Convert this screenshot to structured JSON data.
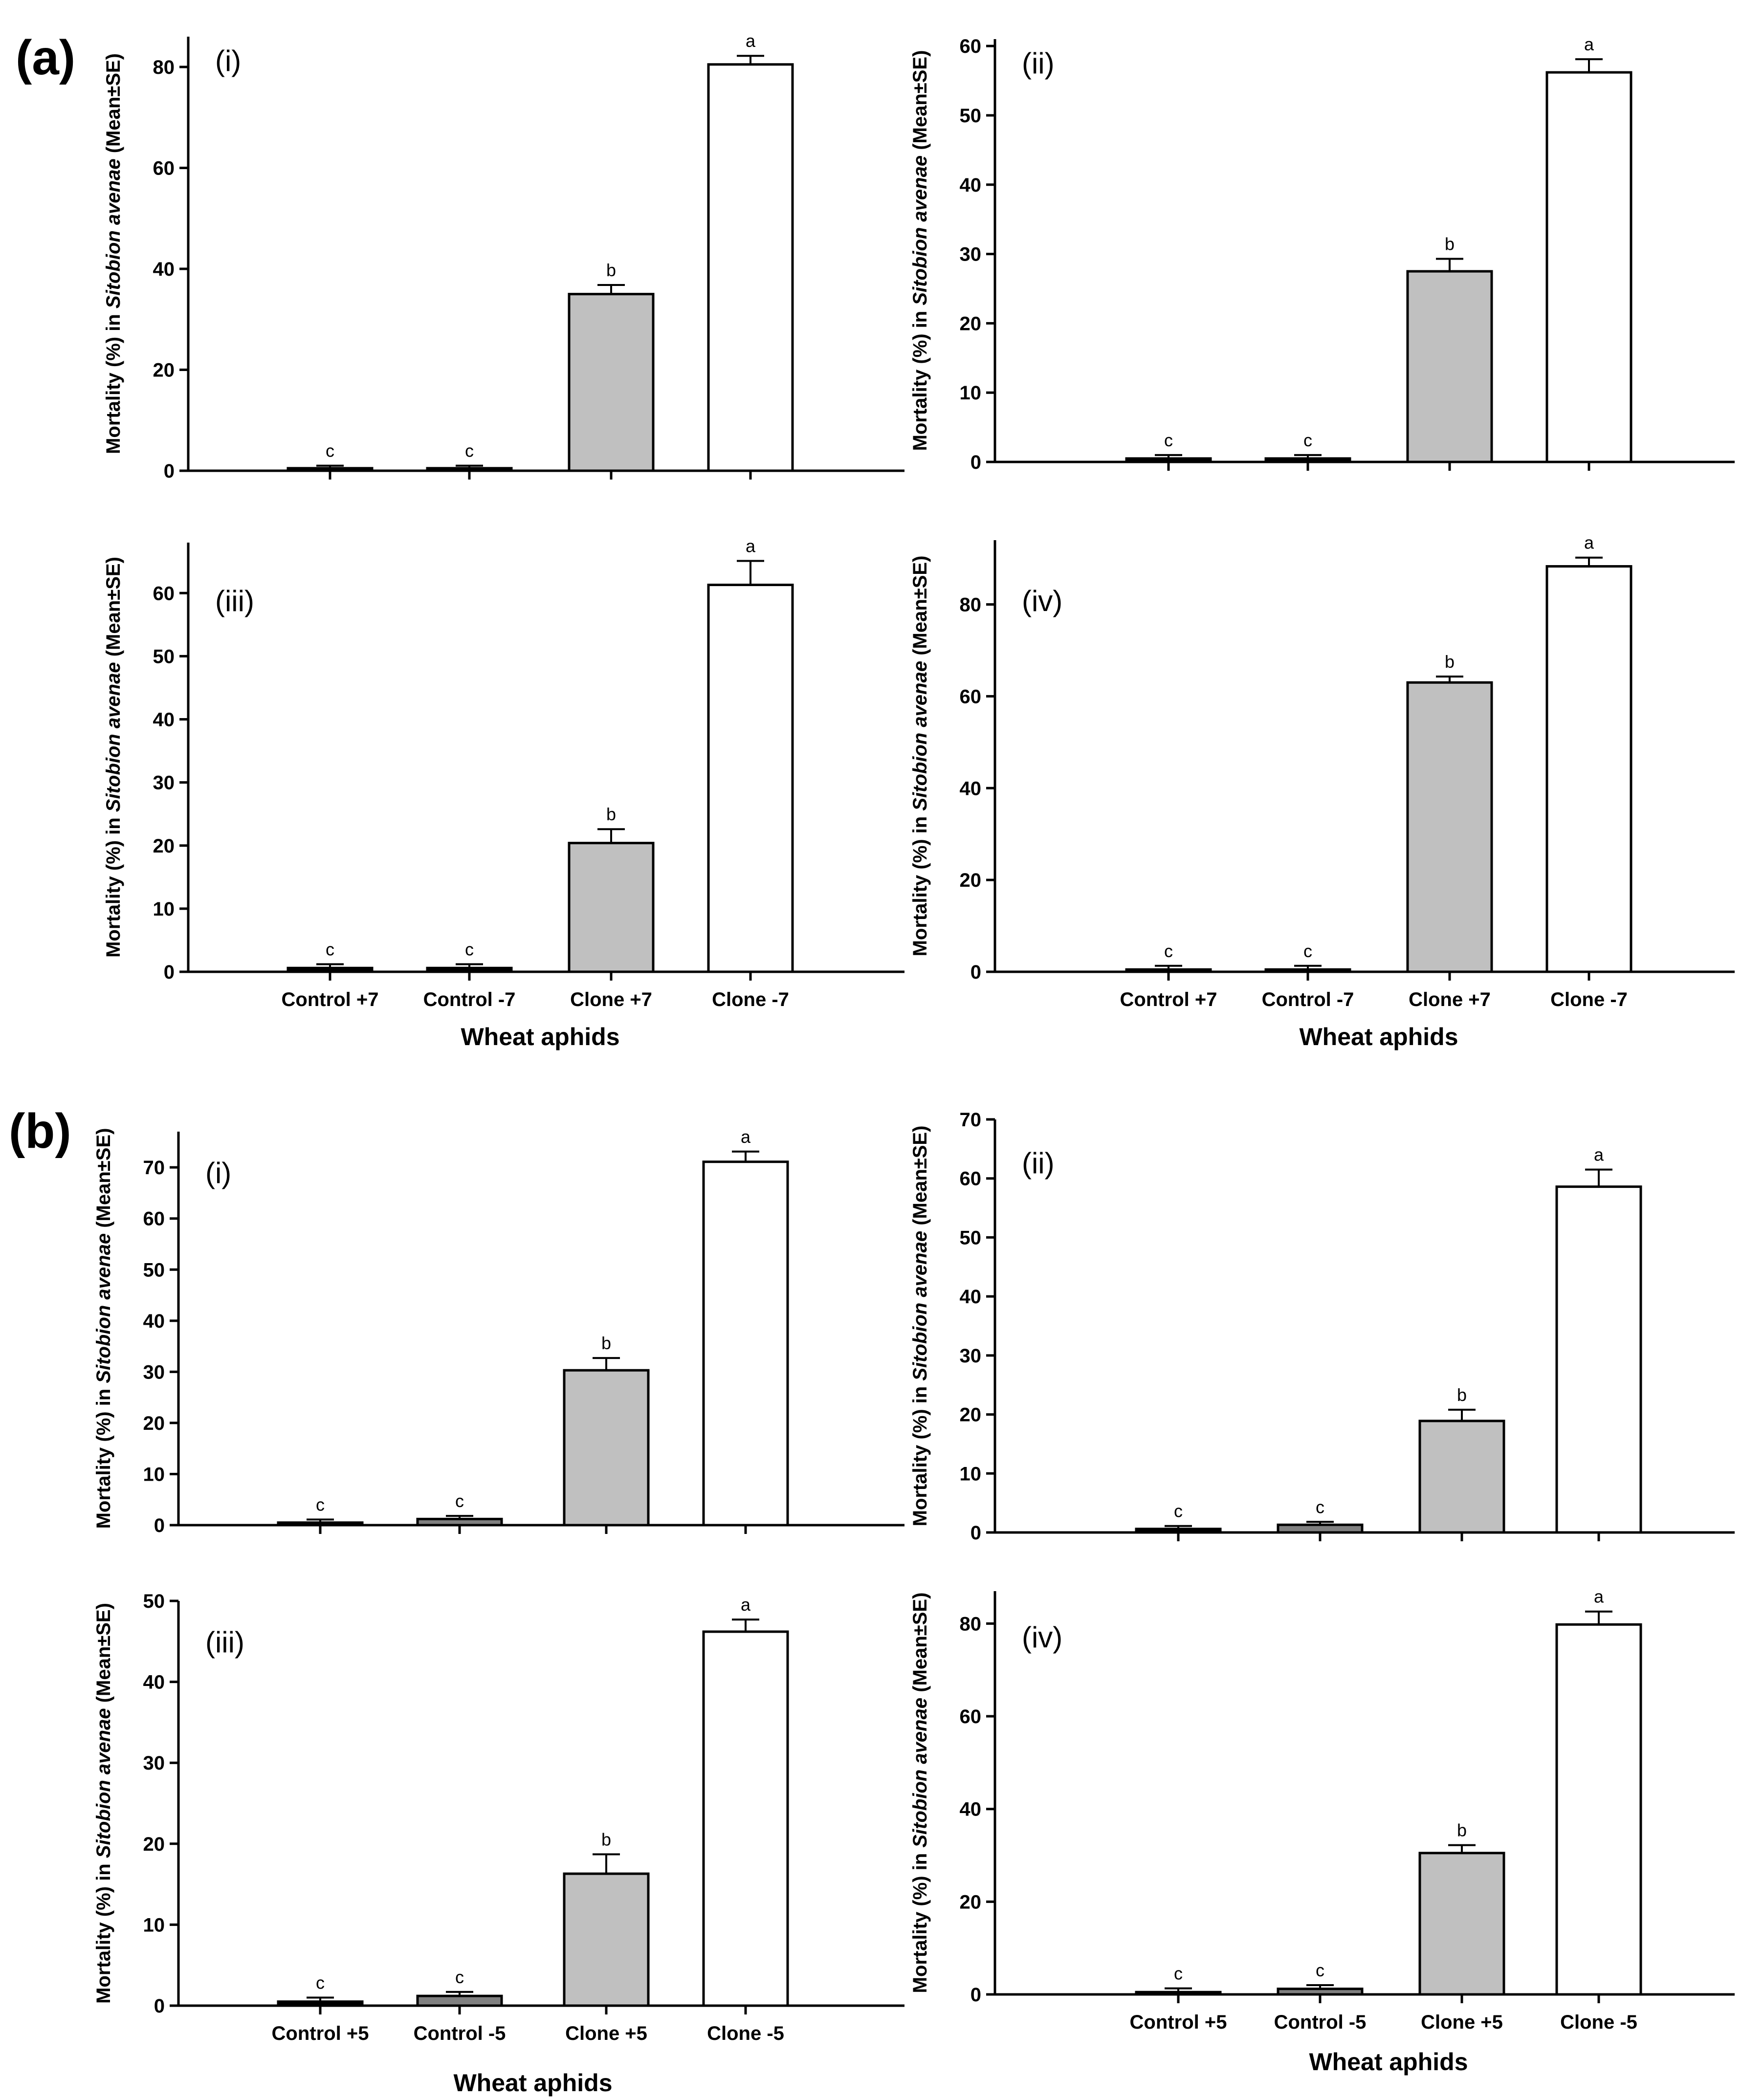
{
  "figure": {
    "panel_labels": [
      "(a)",
      "(b)"
    ],
    "colors": {
      "control": "#000000",
      "control_b": "#808080",
      "clone_plus": "#c0c0c0",
      "clone_minus": "#ffffff",
      "axis": "#000000"
    }
  },
  "chart_data": [
    {
      "type": "bar",
      "group": "a",
      "subplot_label": "(i)",
      "ylabel_prefix": "Mortality (%) in ",
      "ylabel_species": "Sitobion avenae",
      "ylabel_suffix": " (Mean±SE)",
      "xlabel": "",
      "xticks_shown": false,
      "categories": [
        "Control +7",
        "Control -7",
        "Clone +7",
        "Clone -7"
      ],
      "values": [
        0.5,
        0.5,
        35,
        80.5
      ],
      "errors": [
        0.5,
        0.5,
        1.8,
        1.7
      ],
      "letters": [
        "c",
        "c",
        "b",
        "a"
      ],
      "ylim": [
        0,
        86
      ],
      "yticks": [
        0,
        20,
        40,
        60,
        80
      ]
    },
    {
      "type": "bar",
      "group": "a",
      "subplot_label": "(ii)",
      "ylabel_prefix": "Mortality (%) in ",
      "ylabel_species": "Sitobion avenae",
      "ylabel_suffix": " (Mean±SE)",
      "xlabel": "",
      "xticks_shown": false,
      "categories": [
        "Control +7",
        "Control -7",
        "Clone +7",
        "Clone -7"
      ],
      "values": [
        0.5,
        0.5,
        27.5,
        56.2
      ],
      "errors": [
        0.5,
        0.5,
        1.8,
        1.9
      ],
      "letters": [
        "c",
        "c",
        "b",
        "a"
      ],
      "ylim": [
        0,
        61
      ],
      "yticks": [
        0,
        10,
        20,
        30,
        40,
        50,
        60
      ]
    },
    {
      "type": "bar",
      "group": "a",
      "subplot_label": "(iii)",
      "ylabel_prefix": "Mortality (%) in ",
      "ylabel_species": "Sitobion avenae",
      "ylabel_suffix": " (Mean±SE)",
      "xlabel": "Wheat aphids",
      "xticks_shown": true,
      "categories": [
        "Control +7",
        "Control -7",
        "Clone +7",
        "Clone -7"
      ],
      "values": [
        0.6,
        0.6,
        20.4,
        61.3
      ],
      "errors": [
        0.6,
        0.6,
        2.2,
        3.8
      ],
      "letters": [
        "c",
        "c",
        "b",
        "a"
      ],
      "ylim": [
        0,
        68
      ],
      "yticks": [
        0,
        10,
        20,
        30,
        40,
        50,
        60
      ]
    },
    {
      "type": "bar",
      "group": "a",
      "subplot_label": "(iv)",
      "ylabel_prefix": "Mortality (%) in ",
      "ylabel_species": "Sitobion avenae",
      "ylabel_suffix": " (Mean±SE)",
      "xlabel": "Wheat aphids",
      "xticks_shown": true,
      "categories": [
        "Control +7",
        "Control -7",
        "Clone +7",
        "Clone -7"
      ],
      "values": [
        0.5,
        0.5,
        63,
        88.3
      ],
      "errors": [
        0.8,
        0.8,
        1.3,
        1.9
      ],
      "letters": [
        "c",
        "c",
        "b",
        "a"
      ],
      "ylim": [
        0,
        94
      ],
      "yticks": [
        0,
        20,
        40,
        60,
        80
      ]
    },
    {
      "type": "bar",
      "group": "b",
      "subplot_label": "(i)",
      "ylabel_prefix": "Mortality (%) in ",
      "ylabel_species": "Sitobion avenae",
      "ylabel_suffix": " (Mean±SE)",
      "xlabel": "",
      "xticks_shown": false,
      "categories": [
        "Control +5",
        "Control -5",
        "Clone +5",
        "Clone -5"
      ],
      "values": [
        0.5,
        1.2,
        30.3,
        71.1
      ],
      "errors": [
        0.6,
        0.6,
        2.4,
        2.0
      ],
      "letters": [
        "c",
        "c",
        "b",
        "a"
      ],
      "ylim": [
        0,
        77
      ],
      "yticks": [
        0,
        10,
        20,
        30,
        40,
        50,
        60,
        70
      ]
    },
    {
      "type": "bar",
      "group": "b",
      "subplot_label": "(ii)",
      "ylabel_prefix": "Mortality (%) in ",
      "ylabel_species": "Sitobion avenae",
      "ylabel_suffix": " (Mean±SE)",
      "xlabel": "",
      "xticks_shown": false,
      "categories": [
        "Control +5",
        "Control -5",
        "Clone +5",
        "Clone -5"
      ],
      "values": [
        0.6,
        1.3,
        18.9,
        58.6
      ],
      "errors": [
        0.5,
        0.5,
        1.9,
        2.9
      ],
      "letters": [
        "c",
        "c",
        "b",
        "a"
      ],
      "ylim": [
        0,
        70
      ],
      "yticks": [
        0,
        10,
        20,
        30,
        40,
        50,
        60,
        70
      ]
    },
    {
      "type": "bar",
      "group": "b",
      "subplot_label": "(iii)",
      "ylabel_prefix": "Mortality (%) in ",
      "ylabel_species": "Sitobion avenae",
      "ylabel_suffix": " (Mean±SE)",
      "xlabel": "Wheat aphids",
      "xticks_shown": true,
      "categories": [
        "Control +5",
        "Control -5",
        "Clone +5",
        "Clone -5"
      ],
      "values": [
        0.5,
        1.2,
        16.3,
        46.2
      ],
      "errors": [
        0.5,
        0.5,
        2.4,
        1.5
      ],
      "letters": [
        "c",
        "c",
        "b",
        "a"
      ],
      "ylim": [
        0,
        50
      ],
      "yticks": [
        0,
        10,
        20,
        30,
        40,
        50
      ]
    },
    {
      "type": "bar",
      "group": "b",
      "subplot_label": "(iv)",
      "ylabel_prefix": "Mortality (%) in ",
      "ylabel_species": "Sitobion avenae",
      "ylabel_suffix": " (Mean±SE)",
      "xlabel": "Wheat aphids",
      "xticks_shown": true,
      "categories": [
        "Control +5",
        "Control -5",
        "Clone +5",
        "Clone -5"
      ],
      "values": [
        0.5,
        1.2,
        30.5,
        79.8
      ],
      "errors": [
        0.8,
        0.8,
        1.7,
        2.8
      ],
      "letters": [
        "c",
        "c",
        "b",
        "a"
      ],
      "ylim": [
        0,
        87
      ],
      "yticks": [
        0,
        20,
        40,
        60,
        80
      ]
    }
  ]
}
